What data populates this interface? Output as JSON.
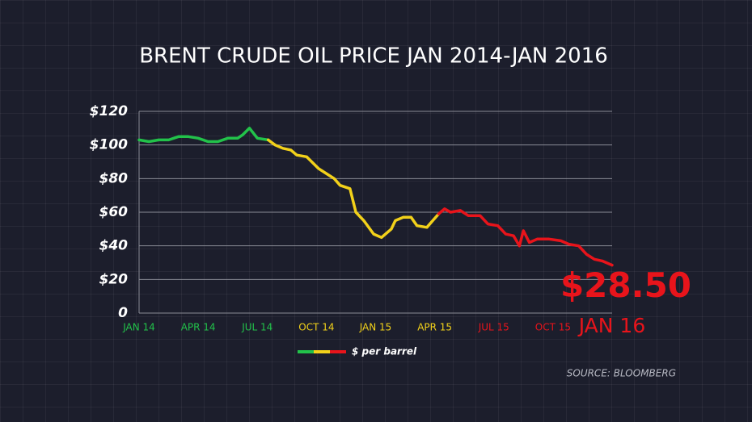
{
  "chart_data": {
    "type": "line",
    "title": "BRENT CRUDE OIL PRICE JAN 2014-JAN 2016",
    "xlim": [
      0,
      24
    ],
    "xticks": [
      {
        "value": 0,
        "label": "JAN 14"
      },
      {
        "value": 3,
        "label": "APR 14"
      },
      {
        "value": 6,
        "label": "JUL 14"
      },
      {
        "value": 9,
        "label": "OCT 14"
      },
      {
        "value": 12,
        "label": "JAN 15"
      },
      {
        "value": 15,
        "label": "APR 15"
      },
      {
        "value": 18,
        "label": "JUL 15"
      },
      {
        "value": 21,
        "label": "OCT 15"
      },
      {
        "value": 24,
        "label": "JAN 16"
      }
    ],
    "ylim": [
      0,
      120
    ],
    "yticks": [
      0,
      {
        "value": 20,
        "label": "$20"
      },
      {
        "value": 40,
        "label": "$40"
      },
      {
        "value": 60,
        "label": "$60"
      },
      {
        "value": 80,
        "label": "$80"
      },
      {
        "value": 100,
        "label": "$100"
      },
      {
        "value": 120,
        "label": "$120"
      }
    ],
    "grid": true,
    "series": [
      {
        "color": "#22c24a",
        "x": [
          0,
          0.5,
          1,
          1.5,
          2,
          2.5,
          3,
          3.5,
          4,
          4.5,
          5,
          5.25,
          5.6,
          6,
          6.55
        ],
        "values": [
          103,
          102,
          103,
          103,
          105,
          105,
          104,
          102,
          102,
          104,
          104,
          106,
          110,
          104,
          103
        ]
      },
      {
        "color": "#f2d11a",
        "x": [
          6.55,
          6.9,
          7.3,
          7.7,
          8,
          8.5,
          9.1,
          9.5,
          9.9,
          10.2,
          10.7,
          11,
          11.4,
          11.9,
          12.3,
          12.8,
          13,
          13.4,
          13.8,
          14.1,
          14.6,
          14.9,
          15.2
        ],
        "values": [
          103,
          100,
          98,
          97,
          94,
          93,
          86,
          83,
          80,
          76,
          74,
          60,
          55,
          47,
          45,
          50,
          55,
          57,
          57,
          52,
          51,
          55,
          59
        ]
      },
      {
        "color": "#e8141b",
        "x": [
          15.2,
          15.5,
          15.8,
          16.3,
          16.7,
          17.3,
          17.7,
          18.2,
          18.6,
          19,
          19.3,
          19.5,
          19.8,
          20.2,
          20.8,
          21.4,
          21.8,
          22.3,
          22.7,
          23.1,
          23.5,
          24
        ],
        "values": [
          59,
          62,
          60,
          61,
          58,
          58,
          53,
          52,
          47,
          46,
          40,
          49,
          42,
          44,
          44,
          43,
          41,
          40,
          35,
          32,
          31,
          28.5
        ]
      }
    ],
    "annotation": "$28.50",
    "legend": {
      "label": "$ per barrel"
    },
    "source": "SOURCE: BLOOMBERG"
  }
}
